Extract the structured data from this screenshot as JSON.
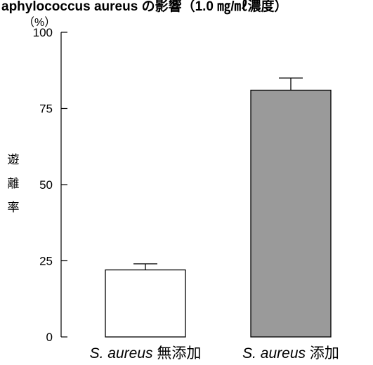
{
  "chart_data": {
    "type": "bar",
    "title": "aphylococcus aureus の影響（1.0 ㎎/㎖濃度）",
    "ylabel": "遊離率",
    "ylabel_chars": [
      "遊",
      "離",
      "率"
    ],
    "y_unit": "（%）",
    "ylim": [
      0,
      100
    ],
    "yticks": [
      0,
      25,
      50,
      75,
      100
    ],
    "categories": [
      {
        "species": "S. aureus",
        "condition": "無添加"
      },
      {
        "species": "S. aureus",
        "condition": "添加"
      }
    ],
    "values": [
      22,
      81
    ],
    "error_upper": [
      24,
      85
    ],
    "bar_colors": [
      "#ffffff",
      "#9a9a9a"
    ],
    "grid": false,
    "legend": "none"
  }
}
